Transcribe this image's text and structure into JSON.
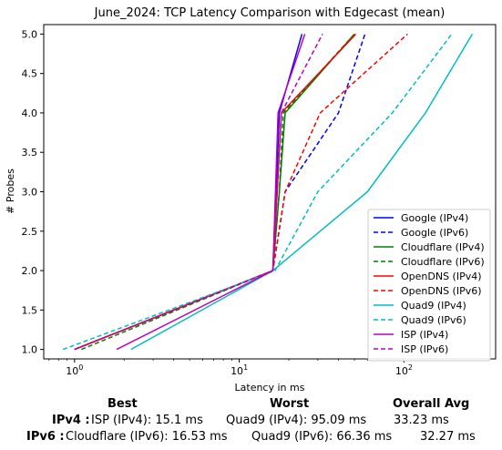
{
  "chart_data": {
    "type": "line",
    "title": "June_2024: TCP Latency Comparison with Edgecast (mean)",
    "xlabel": "Latency in ms",
    "ylabel": "# Probes",
    "xscale": "log",
    "xlim": [
      0.65,
      360
    ],
    "ylim": [
      0.88,
      5.12
    ],
    "xticks": [
      {
        "value": 1,
        "label": "10^0"
      },
      {
        "value": 10,
        "label": "10^1"
      },
      {
        "value": 100,
        "label": "10^2"
      }
    ],
    "yticks": [
      1.0,
      1.5,
      2.0,
      2.5,
      3.0,
      3.5,
      4.0,
      4.5,
      5.0
    ],
    "ytick_labels": [
      "1.0",
      "1.5",
      "2.0",
      "2.5",
      "3.0",
      "3.5",
      "4.0",
      "4.5",
      "5.0"
    ],
    "legend_position": "lower right",
    "series": [
      {
        "name": "Google (IPv4)",
        "color": "#0000ff",
        "style": "solid",
        "x": [
          1.0,
          16.0,
          17.5,
          24.0
        ],
        "y": [
          1,
          2,
          4,
          5
        ]
      },
      {
        "name": "Google (IPv6)",
        "color": "#0000ff",
        "style": "dashed",
        "x": [
          1.0,
          16.0,
          19.0,
          40.0,
          58.0
        ],
        "y": [
          1,
          2,
          3,
          4,
          5
        ]
      },
      {
        "name": "Cloudflare (IPv4)",
        "color": "#008000",
        "style": "solid",
        "x": [
          1.0,
          16.0,
          17.5,
          19.0,
          50.0
        ],
        "y": [
          1,
          2,
          3,
          4,
          5
        ]
      },
      {
        "name": "Cloudflare (IPv6)",
        "color": "#008000",
        "style": "dashed",
        "x": [
          1.1,
          16.0,
          17.5,
          18.5,
          50.0
        ],
        "y": [
          1,
          2,
          3,
          4,
          5
        ]
      },
      {
        "name": "OpenDNS (IPv4)",
        "color": "#ff0000",
        "style": "solid",
        "x": [
          1.0,
          16.0,
          17.0,
          18.0,
          51.0
        ],
        "y": [
          1,
          2,
          3,
          4,
          5
        ]
      },
      {
        "name": "OpenDNS (IPv6)",
        "color": "#ff0000",
        "style": "dashed",
        "x": [
          1.0,
          16.0,
          19.0,
          31.0,
          105.0
        ],
        "y": [
          1,
          2,
          3,
          4,
          5
        ]
      },
      {
        "name": "Quad9 (IPv4)",
        "color": "#00bfbf",
        "style": "solid",
        "x": [
          2.2,
          16.0,
          60.0,
          135.0,
          260.0
        ],
        "y": [
          1,
          2,
          3,
          4,
          5
        ]
      },
      {
        "name": "Quad9 (IPv6)",
        "color": "#00bfbf",
        "style": "dashed",
        "x": [
          0.85,
          16.5,
          30.0,
          85.0,
          195.0
        ],
        "y": [
          1,
          2,
          3,
          4,
          5
        ]
      },
      {
        "name": "ISP (IPv4)",
        "color": "#bf00bf",
        "style": "solid",
        "x": [
          1.8,
          16.0,
          17.2,
          25.0
        ],
        "y": [
          1,
          2,
          4,
          5
        ]
      },
      {
        "name": "ISP (IPv6)",
        "color": "#bf00bf",
        "style": "dashed",
        "x": [
          1.0,
          16.0,
          18.0,
          32.0
        ],
        "y": [
          1,
          2,
          4,
          5
        ]
      }
    ]
  },
  "stats": {
    "best_header": "Best",
    "worst_header": "Worst",
    "avg_header": "Overall Avg",
    "rows": [
      {
        "label": "IPv4 :",
        "best": "ISP (IPv4): 15.1 ms",
        "worst": "Quad9 (IPv4): 95.09 ms",
        "avg": "33.23 ms"
      },
      {
        "label": "IPv6 :",
        "best": "Cloudflare (IPv6): 16.53 ms",
        "worst": "Quad9 (IPv6): 66.36 ms",
        "avg": "32.27 ms"
      }
    ]
  }
}
